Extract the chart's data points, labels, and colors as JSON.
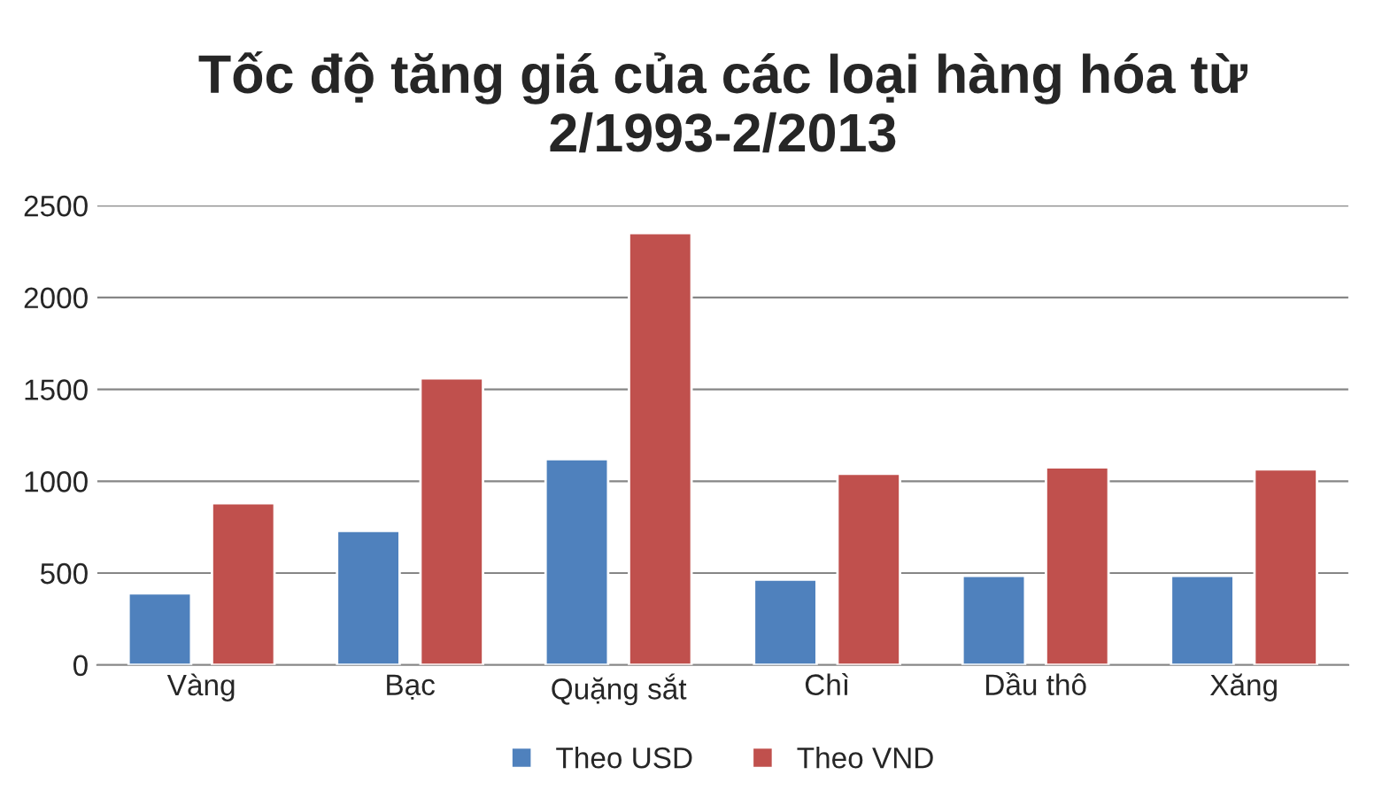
{
  "chart_data": {
    "type": "bar",
    "title": "Tốc độ tăng giá của các loại hàng hóa từ\n2/1993-2/2013",
    "categories": [
      "Vàng",
      "Bạc",
      "Quặng sắt",
      "Chì",
      "Dầu thô",
      "Xăng"
    ],
    "series": [
      {
        "name": "Theo USD",
        "color": "#4f81bd",
        "values": [
          390,
          730,
          1120,
          465,
          485,
          485
        ]
      },
      {
        "name": "Theo VND",
        "color": "#c0504d",
        "values": [
          880,
          1560,
          2350,
          1040,
          1075,
          1065
        ]
      }
    ],
    "ylim": [
      0,
      2500
    ],
    "yticks": [
      0,
      500,
      1000,
      1500,
      2000,
      2500
    ],
    "grid": "y",
    "legend": "bottom"
  }
}
